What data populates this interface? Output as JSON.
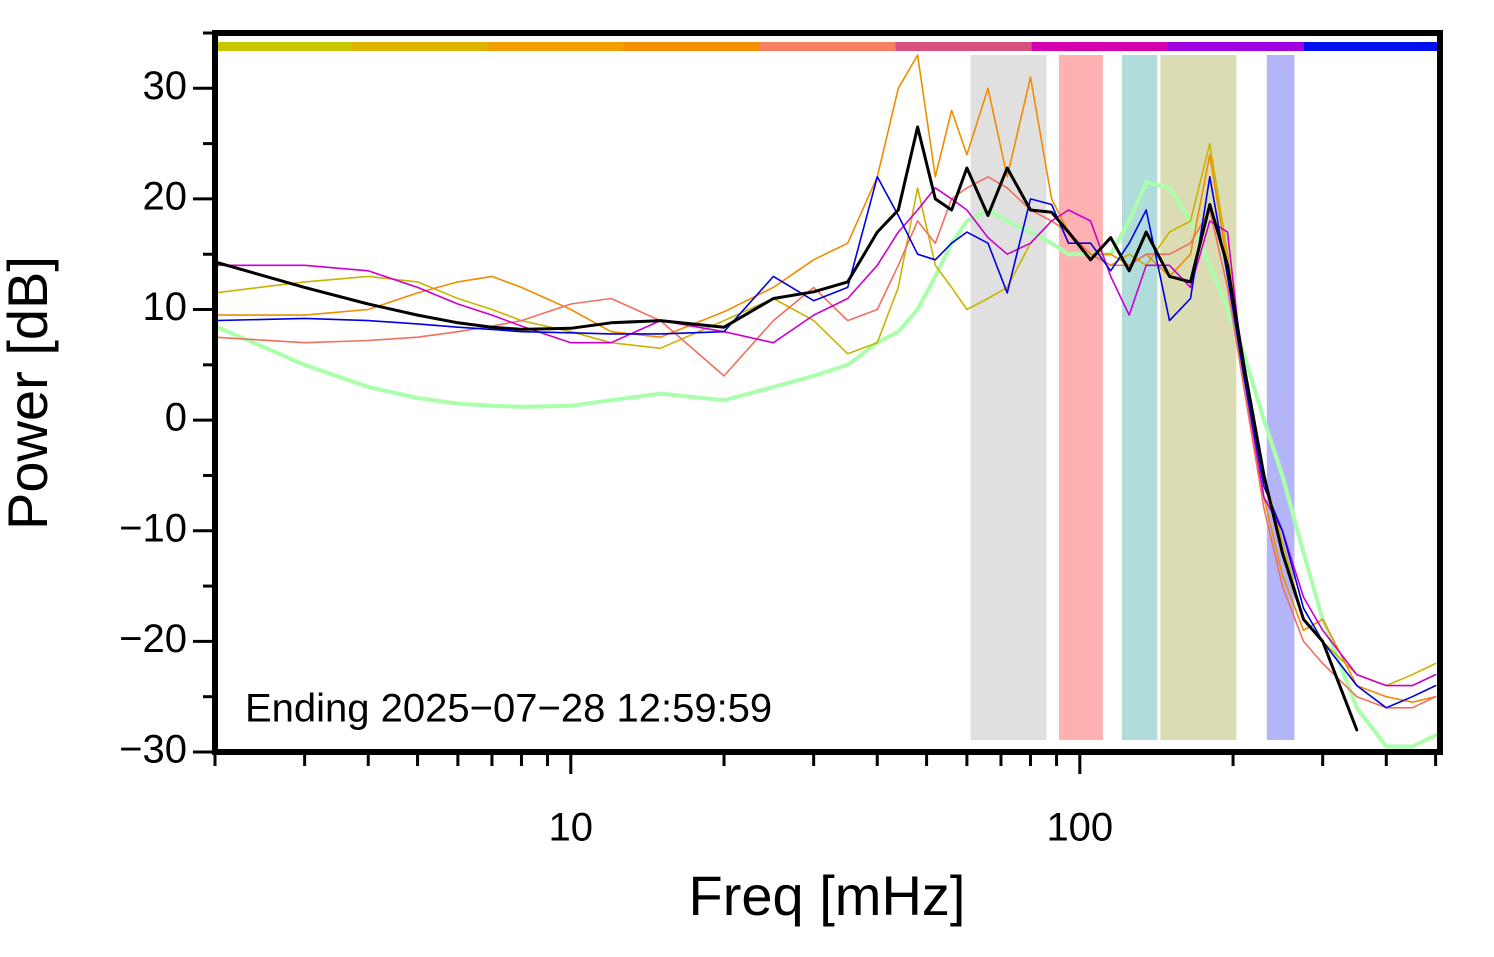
{
  "chart_data": {
    "type": "line",
    "xlabel": "Freq [mHz]",
    "ylabel": "Power [dB]",
    "annotation": "Ending 2025−07−28 12:59:59",
    "xscale": "log",
    "xlim": [
      2,
      510
    ],
    "ylim": [
      -30,
      35
    ],
    "xticks": [
      10,
      100
    ],
    "xminorticks": [
      2,
      3,
      4,
      5,
      6,
      7,
      8,
      9,
      20,
      30,
      40,
      50,
      60,
      70,
      80,
      90,
      200,
      300,
      400,
      500
    ],
    "yticks": [
      {
        "value": -30,
        "label": "−30"
      },
      {
        "value": -20,
        "label": "−20"
      },
      {
        "value": -10,
        "label": "−10"
      },
      0,
      10,
      20,
      30
    ],
    "yminorticks": [
      -25,
      -15,
      -5,
      5,
      15,
      25,
      35
    ],
    "top_bar_colors": [
      "#c8c800",
      "#dcb400",
      "#f0a000",
      "#f59000",
      "#f88060",
      "#d85080",
      "#d400b0",
      "#a000e0",
      "#0010f0"
    ],
    "bands": [
      {
        "range": [
          61,
          86
        ],
        "color": "#e0e0e0"
      },
      {
        "range": [
          91,
          111
        ],
        "color": "#ffb0b0"
      },
      {
        "range": [
          121,
          142
        ],
        "color": "#b0dcdc"
      },
      {
        "range": [
          144,
          203
        ],
        "color": "#dcdcb4"
      },
      {
        "range": [
          233,
          264
        ],
        "color": "#b4b4f8"
      }
    ],
    "x": [
      2,
      3,
      4,
      5,
      6,
      7,
      8,
      10,
      12,
      15,
      20,
      25,
      30,
      35,
      40,
      44,
      48,
      52,
      56,
      60,
      66,
      72,
      80,
      88,
      95,
      105,
      115,
      125,
      135,
      150,
      165,
      180,
      195,
      210,
      230,
      250,
      275,
      300,
      350,
      400,
      450,
      500
    ],
    "series": [
      {
        "color": "#aaffaa",
        "width": 4,
        "values": [
          8.5,
          5,
          3,
          2,
          1.5,
          1.3,
          1.2,
          1.3,
          1.8,
          2.4,
          1.8,
          3,
          4,
          5,
          7,
          8,
          10,
          13,
          16,
          18,
          19,
          18,
          17,
          16,
          15,
          15,
          15,
          18,
          21.5,
          21,
          18,
          14,
          10,
          6,
          0,
          -5,
          -12,
          -18,
          -26,
          -29.5,
          -29.5,
          -28.5
        ]
      },
      {
        "color": "#c8b400",
        "width": 1.6,
        "values": [
          11.5,
          12.5,
          13,
          12.5,
          11,
          10,
          9,
          8,
          7,
          6.5,
          9,
          11,
          9,
          6,
          7,
          12,
          21,
          14,
          12,
          10,
          11,
          12,
          16,
          18,
          17,
          15,
          14,
          15,
          14,
          17,
          18,
          25,
          15,
          5,
          -5,
          -11,
          -18,
          -20,
          -23,
          -24,
          -23,
          -22
        ]
      },
      {
        "color": "#f08c00",
        "width": 1.6,
        "values": [
          9.5,
          9.5,
          10,
          11.5,
          12.5,
          13,
          12,
          10,
          8,
          7.5,
          9.8,
          12,
          14.5,
          16,
          22,
          30,
          33,
          22,
          28,
          24,
          30,
          22,
          31,
          20,
          17,
          15,
          15,
          14,
          15,
          13,
          15,
          24,
          14,
          3,
          -7,
          -14,
          -19,
          -18,
          -24,
          -25,
          -25.5,
          -25
        ]
      },
      {
        "color": "#f07060",
        "width": 1.6,
        "values": [
          7.5,
          7,
          7.2,
          7.5,
          8,
          8.5,
          9,
          10.5,
          11,
          9,
          4,
          9,
          12,
          9,
          10,
          14,
          18,
          16,
          20,
          21,
          22,
          21,
          19,
          18,
          17,
          15,
          14,
          14,
          15,
          15,
          16,
          19,
          12,
          3,
          -8,
          -15,
          -20,
          -22,
          -25,
          -26,
          -26,
          -25
        ]
      },
      {
        "color": "#cc00cc",
        "width": 1.6,
        "values": [
          14,
          14,
          13.5,
          12,
          10.5,
          9.5,
          8.5,
          7,
          7,
          9,
          8,
          7,
          9.5,
          11,
          14,
          17,
          19,
          21,
          20,
          19,
          16.5,
          15,
          16,
          18,
          19,
          18,
          13,
          9.5,
          14,
          14,
          12,
          18,
          17,
          4,
          -7,
          -10,
          -16,
          -19,
          -23,
          -24,
          -24,
          -23
        ]
      },
      {
        "color": "#0000e0",
        "width": 1.6,
        "values": [
          9,
          9.2,
          9,
          8.7,
          8.4,
          8.2,
          8,
          7.9,
          7.8,
          7.8,
          8,
          13,
          10.8,
          12,
          22,
          18.5,
          15,
          14.5,
          16,
          17,
          16,
          11.5,
          20,
          19.5,
          16,
          16,
          13.5,
          16,
          19,
          9,
          11,
          22,
          13,
          4,
          -6,
          -10,
          -17,
          -20,
          -24,
          -26,
          -25,
          -24
        ]
      },
      {
        "color": "#000000",
        "width": 3,
        "values": [
          14.3,
          12,
          10.5,
          9.5,
          8.8,
          8.4,
          8.2,
          8.3,
          8.8,
          9,
          8.4,
          11,
          11.6,
          12.5,
          17,
          19,
          26.5,
          20,
          19,
          22.8,
          18.5,
          22.8,
          19,
          18.8,
          17,
          14.5,
          16.5,
          13.5,
          17,
          13,
          12.5,
          19.5,
          14,
          5,
          -5,
          -12,
          -18,
          -20,
          -28,
          null,
          null,
          null
        ]
      }
    ]
  }
}
